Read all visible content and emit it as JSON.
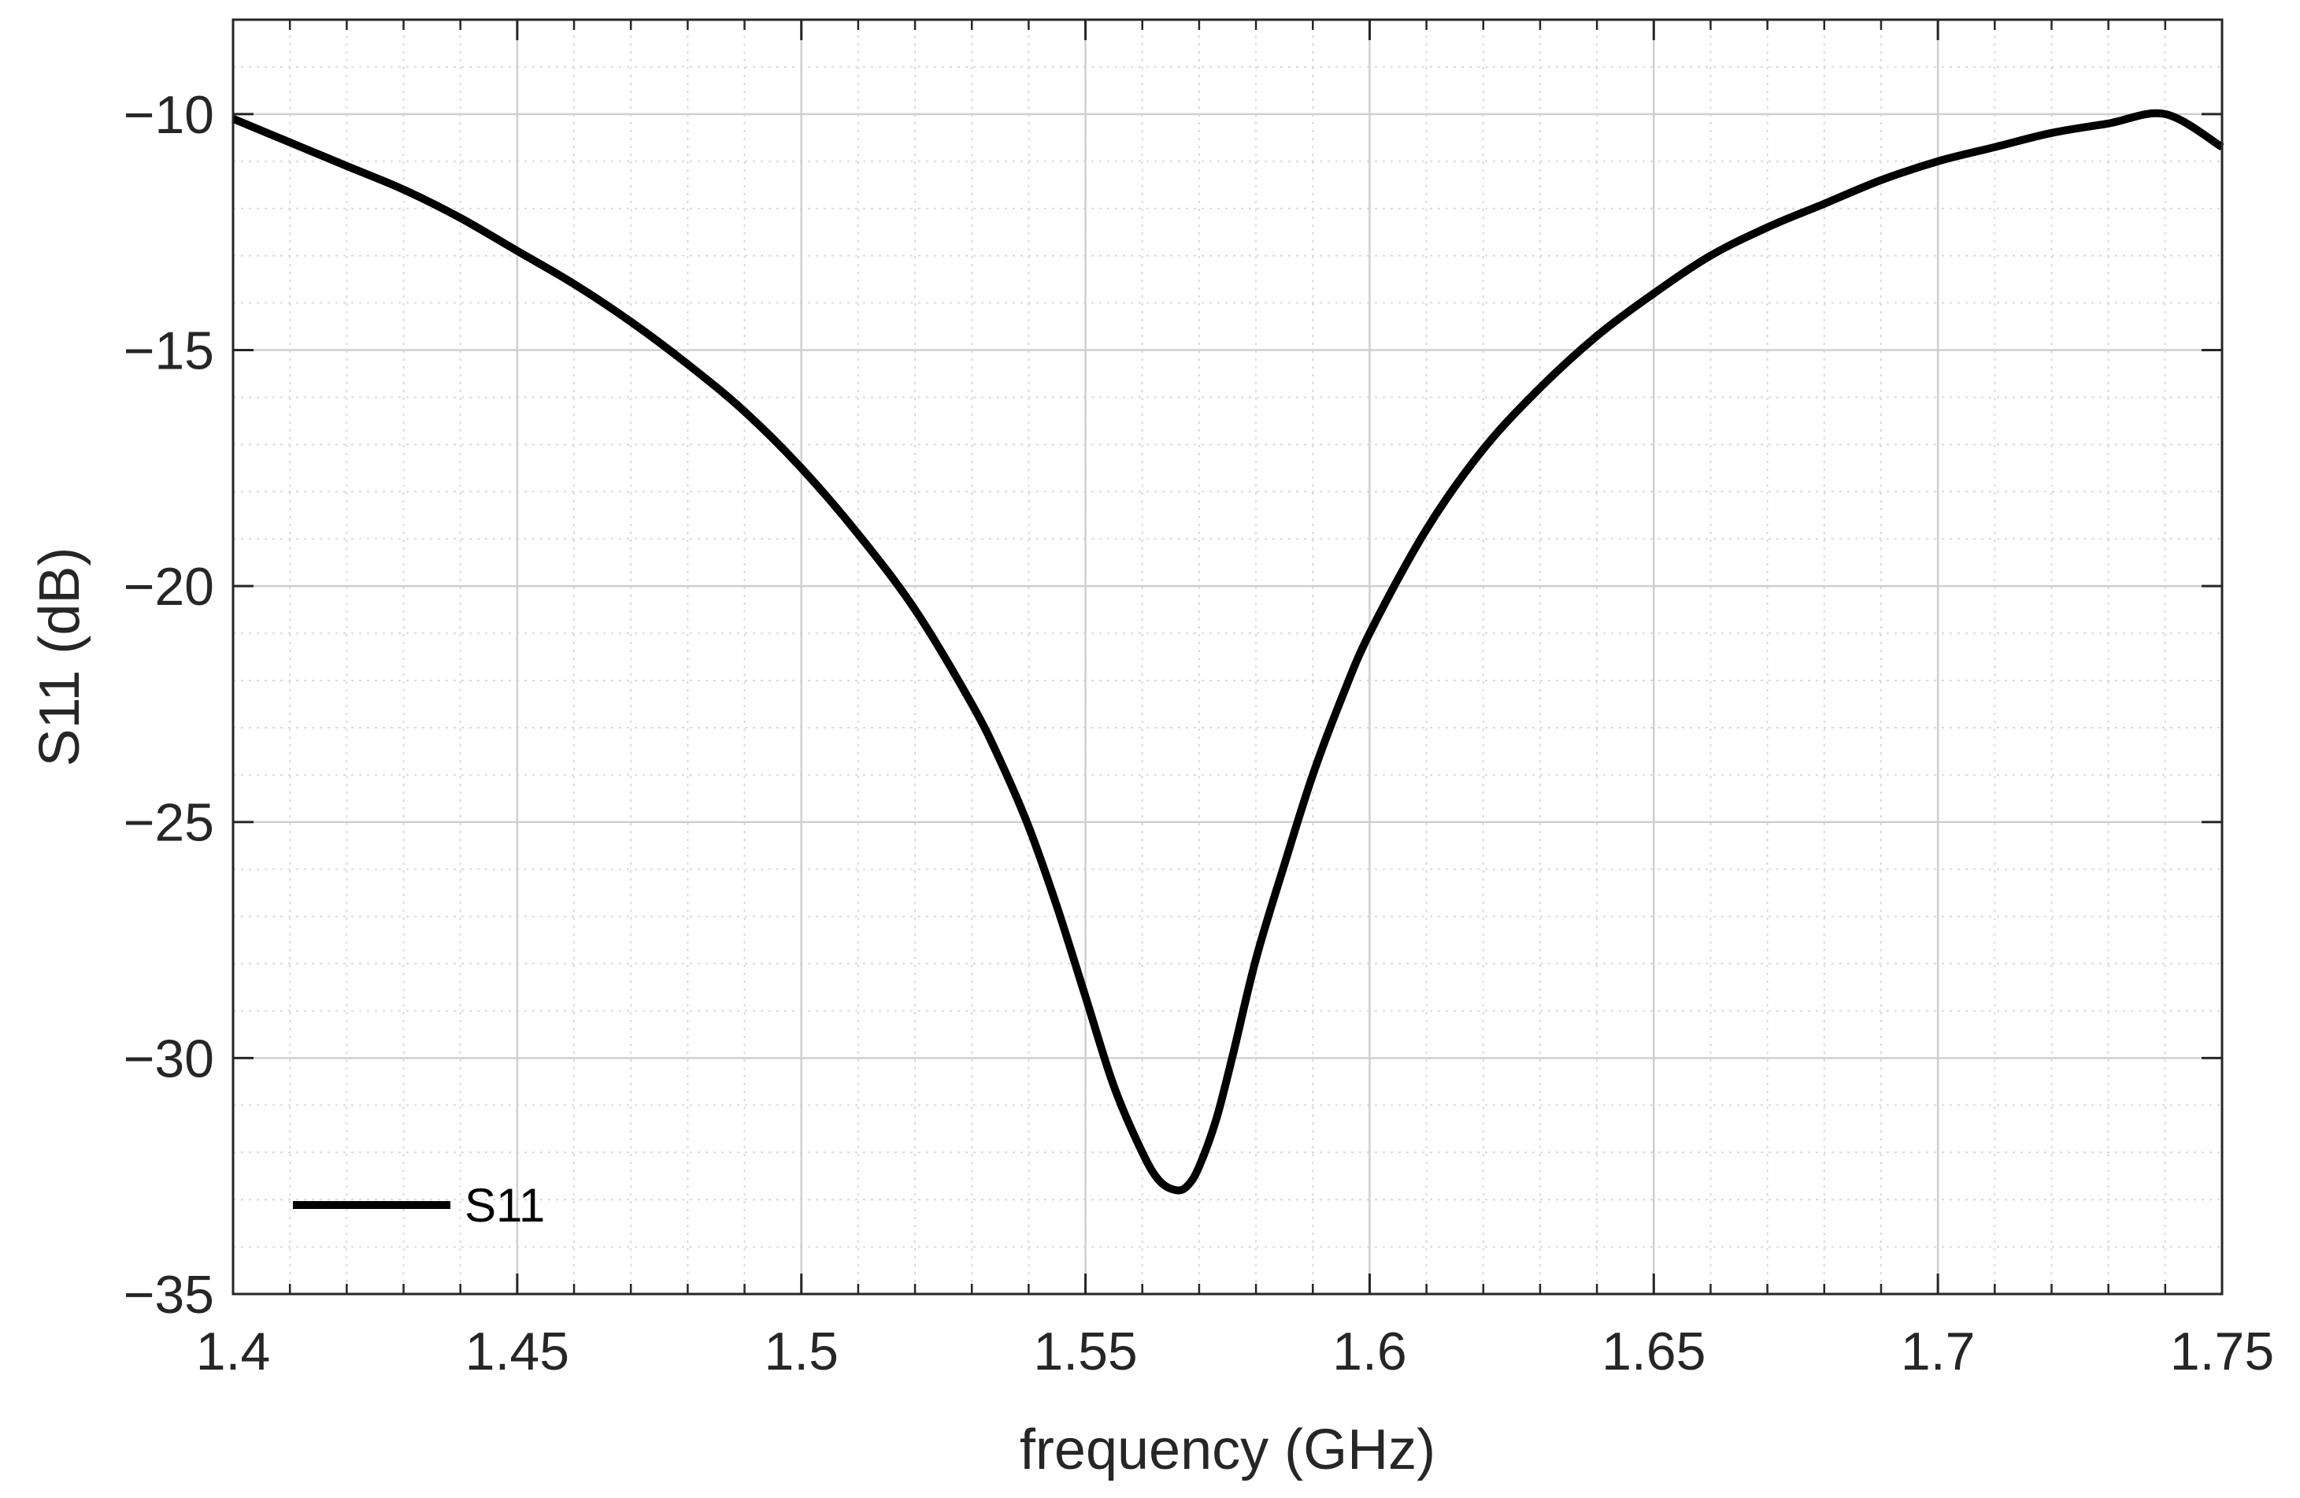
{
  "chart_data": {
    "type": "line",
    "title": "",
    "xlabel": "frequency (GHz)",
    "ylabel": "S11 (dB)",
    "xlim": [
      1.4,
      1.75
    ],
    "ylim": [
      -35,
      -8
    ],
    "x_ticks": [
      1.4,
      1.45,
      1.5,
      1.55,
      1.6,
      1.65,
      1.7,
      1.75
    ],
    "x_tick_labels": [
      "1.4",
      "1.45",
      "1.5",
      "1.55",
      "1.6",
      "1.65",
      "1.7",
      "1.75"
    ],
    "y_ticks": [
      -35,
      -30,
      -25,
      -20,
      -15,
      -10
    ],
    "y_tick_labels": [
      "−35",
      "−30",
      "−25",
      "−20",
      "−15",
      "−10"
    ],
    "x_minor_step": 0.01,
    "y_minor_step": 1,
    "grid": true,
    "minor_grid": true,
    "legend_position": "bottom-left",
    "series": [
      {
        "name": "S11",
        "color": "#000000",
        "x": [
          1.4,
          1.41,
          1.42,
          1.43,
          1.44,
          1.45,
          1.46,
          1.47,
          1.48,
          1.49,
          1.5,
          1.51,
          1.52,
          1.53,
          1.535,
          1.54,
          1.545,
          1.55,
          1.555,
          1.56,
          1.563,
          1.566,
          1.568,
          1.57,
          1.573,
          1.576,
          1.58,
          1.585,
          1.59,
          1.595,
          1.6,
          1.61,
          1.62,
          1.63,
          1.64,
          1.65,
          1.66,
          1.67,
          1.68,
          1.69,
          1.7,
          1.71,
          1.72,
          1.73,
          1.74,
          1.75
        ],
        "y": [
          -10.1,
          -10.6,
          -11.1,
          -11.6,
          -12.2,
          -12.9,
          -13.6,
          -14.4,
          -15.3,
          -16.3,
          -17.5,
          -18.9,
          -20.5,
          -22.5,
          -23.7,
          -25.1,
          -26.8,
          -28.7,
          -30.6,
          -32.0,
          -32.6,
          -32.8,
          -32.7,
          -32.3,
          -31.3,
          -29.9,
          -27.9,
          -25.9,
          -24.0,
          -22.4,
          -21.0,
          -18.8,
          -17.1,
          -15.8,
          -14.7,
          -13.8,
          -13.0,
          -12.4,
          -11.9,
          -11.4,
          -11.0,
          -10.7,
          -10.4,
          -10.2,
          -10.0,
          -10.7
        ]
      }
    ]
  }
}
